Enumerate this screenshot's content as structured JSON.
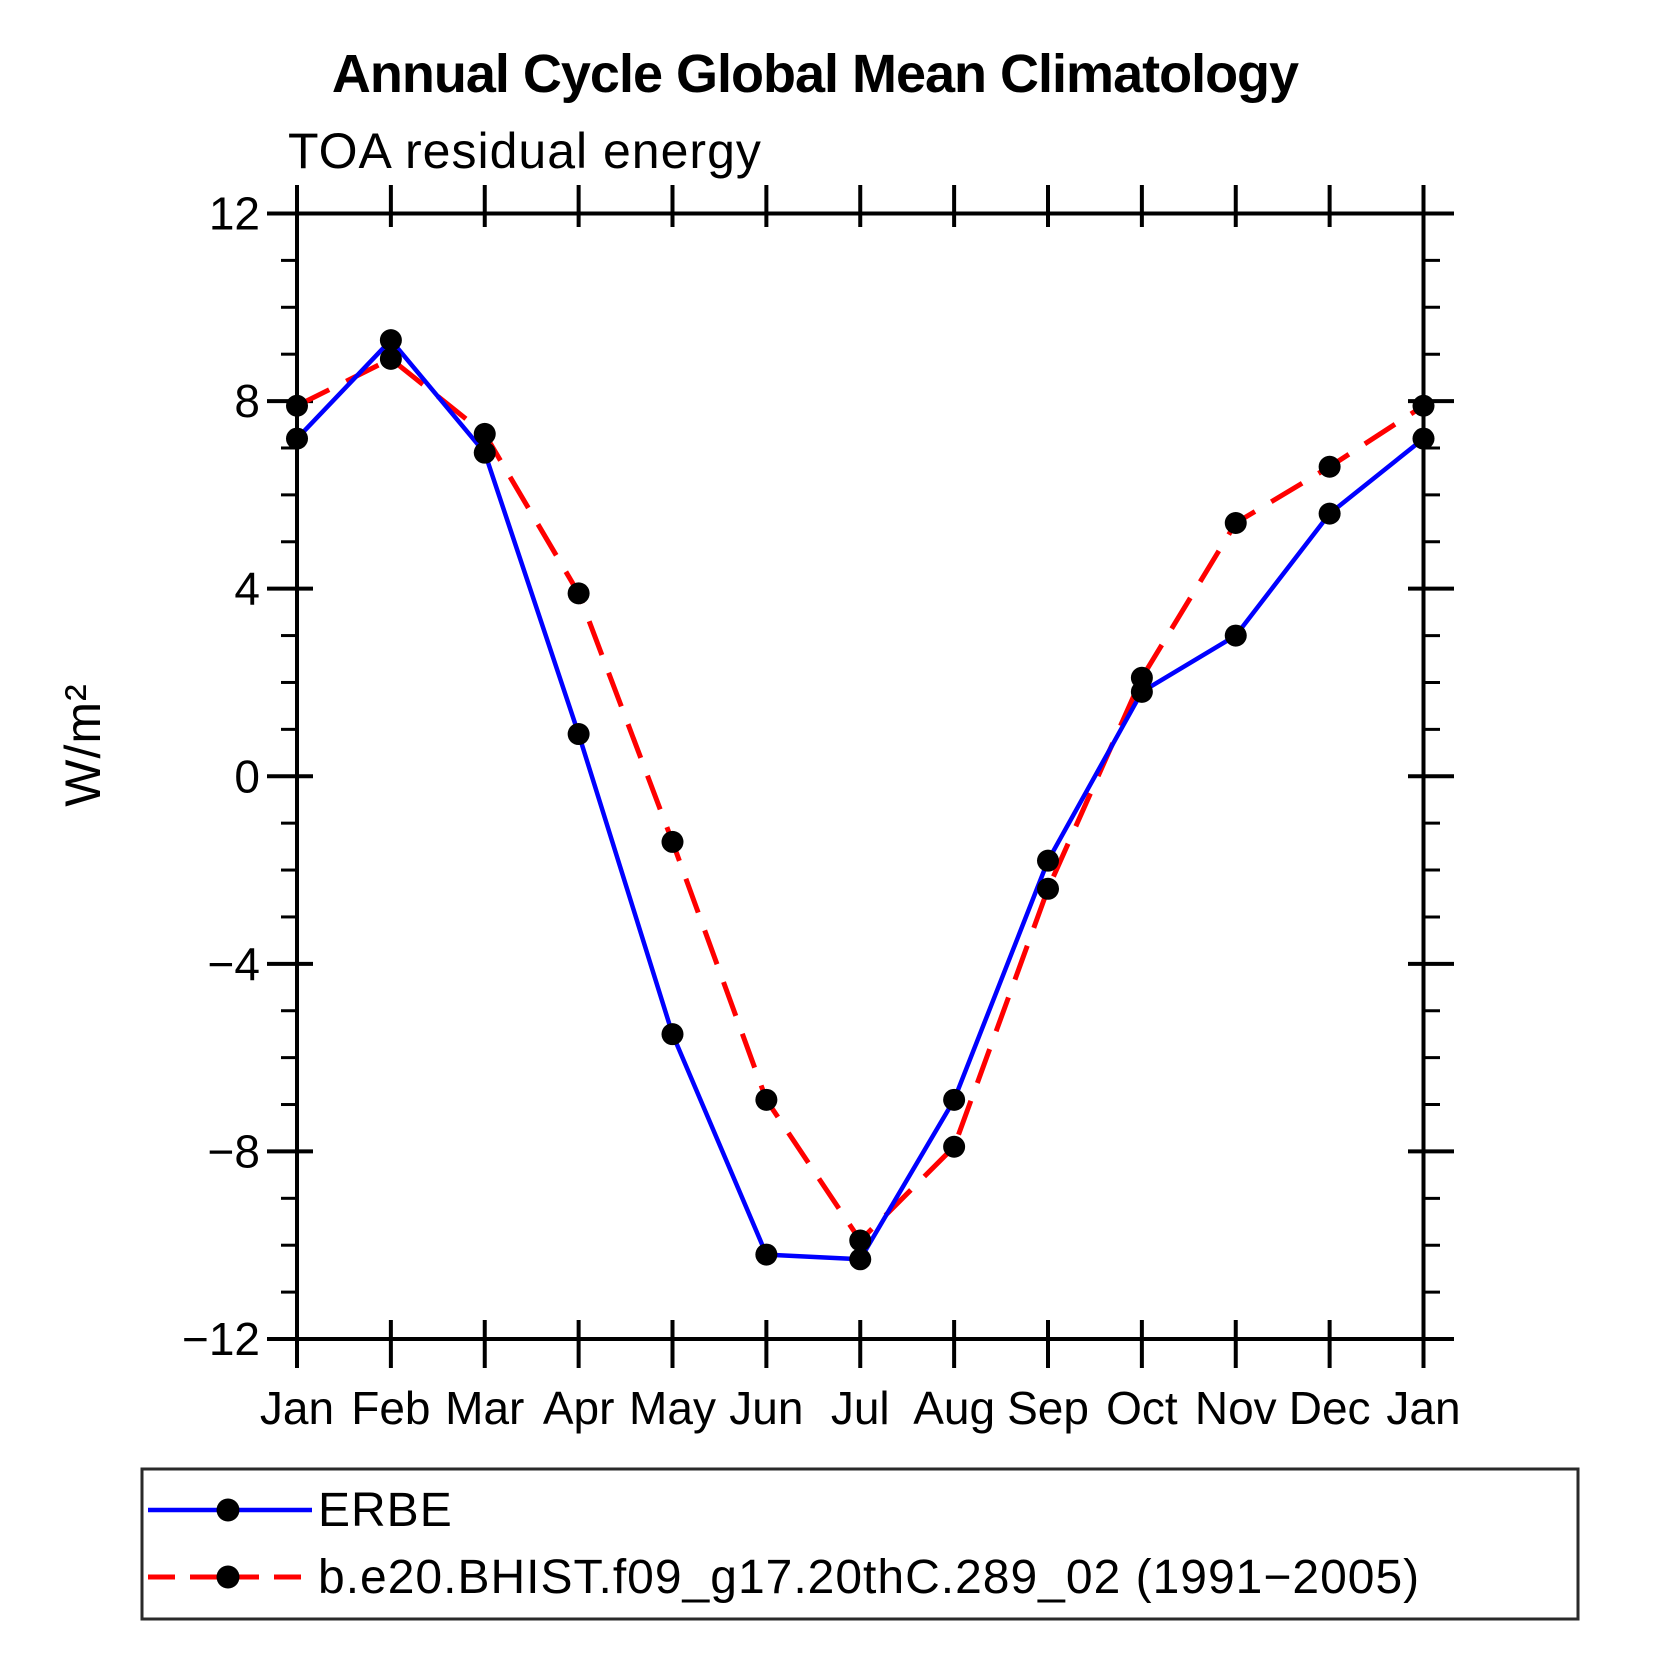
{
  "chart_data": {
    "type": "line",
    "title": "Annual Cycle Global Mean Climatology",
    "subtitle": "TOA residual energy",
    "ylabel": "W/m²",
    "x_categories": [
      "Jan",
      "Feb",
      "Mar",
      "Apr",
      "May",
      "Jun",
      "Jul",
      "Aug",
      "Sep",
      "Oct",
      "Nov",
      "Dec",
      "Jan"
    ],
    "y_axis": {
      "min": -12,
      "max": 12,
      "major_step": 4,
      "minor_step": 1,
      "major_tick_labels": [
        "−12",
        "−8",
        "−4",
        "0",
        "4",
        "8",
        "12"
      ]
    },
    "grid": "off",
    "legend_position": "bottom",
    "series": [
      {
        "name": "ERBE",
        "color": "#0000ff",
        "line_style": "solid",
        "marker": "circle",
        "marker_color": "#000000",
        "values": [
          7.2,
          9.3,
          6.9,
          0.9,
          -5.5,
          -10.2,
          -10.3,
          -6.9,
          -1.8,
          1.8,
          3.0,
          5.6,
          7.2
        ]
      },
      {
        "name": "b.e20.BHIST.f09_g17.20thC.289_02 (1991−2005)",
        "color": "#ff0000",
        "line_style": "dashed",
        "marker": "circle",
        "marker_color": "#000000",
        "values": [
          7.9,
          8.9,
          7.3,
          3.9,
          -1.4,
          -6.9,
          -9.9,
          -7.9,
          -2.4,
          2.1,
          5.4,
          6.6,
          7.9
        ]
      }
    ]
  }
}
